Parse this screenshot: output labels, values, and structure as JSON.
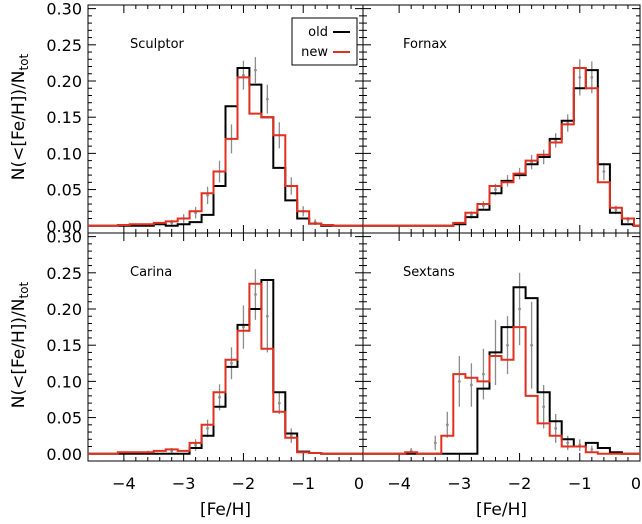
{
  "page": {
    "title": ""
  },
  "legend": {
    "placement": "top-right of first panel",
    "entries": [
      {
        "label": "old",
        "color": "#000000"
      },
      {
        "label": "new",
        "color": "#e03020"
      }
    ]
  },
  "axes": {
    "xlabel": "[Fe/H]",
    "ylabel_main": "N(<[Fe/H])/N",
    "ylabel_sub": "tot",
    "xlim": [
      -4.6,
      0.0
    ],
    "ylim": [
      -0.01,
      0.305
    ],
    "xticks": [
      -4,
      -3,
      -2,
      -1,
      0
    ],
    "xtick_labels": [
      "−4",
      "−3",
      "−2",
      "−1",
      "0"
    ],
    "yticks": [
      0.0,
      0.05,
      0.1,
      0.15,
      0.2,
      0.25,
      0.3
    ],
    "ytick_labels": [
      "0.00",
      "0.05",
      "0.10",
      "0.15",
      "0.20",
      "0.25",
      "0.30"
    ],
    "ytick_labels_lower": [
      "0.00",
      "0.05",
      "0.10",
      "0.15",
      "0.20",
      "0.25",
      "0.30"
    ],
    "ytick_labels_upper": [
      "0.00",
      "0.05",
      "0.10",
      "0.15",
      "0.20",
      "0.25",
      "0.30"
    ]
  },
  "chart_data": [
    {
      "type": "step",
      "title": "Sculptor",
      "bin_width": 0.2,
      "series": [
        {
          "name": "old",
          "color": "#000000",
          "x": [
            -4.0,
            -3.8,
            -3.6,
            -3.4,
            -3.2,
            -3.0,
            -2.8,
            -2.6,
            -2.4,
            -2.2,
            -2.0,
            -1.8,
            -1.6,
            -1.4,
            -1.2,
            -1.0,
            -0.8,
            -0.6
          ],
          "values": [
            0.0,
            0.0,
            0.0,
            0.002,
            0.0,
            0.002,
            0.005,
            0.015,
            0.055,
            0.165,
            0.218,
            0.195,
            0.15,
            0.08,
            0.035,
            0.01,
            0.003,
            0.0
          ]
        },
        {
          "name": "new",
          "color": "#e03020",
          "x": [
            -4.0,
            -3.8,
            -3.6,
            -3.4,
            -3.2,
            -3.0,
            -2.8,
            -2.6,
            -2.4,
            -2.2,
            -2.0,
            -1.8,
            -1.6,
            -1.4,
            -1.2,
            -1.0,
            -0.8,
            -0.6
          ],
          "values": [
            0.001,
            0.002,
            0.002,
            0.004,
            0.006,
            0.01,
            0.02,
            0.045,
            0.075,
            0.12,
            0.205,
            0.155,
            0.15,
            0.125,
            0.055,
            0.02,
            0.003,
            0.001
          ]
        }
      ],
      "errorbars": {
        "x": [
          -3.2,
          -3.0,
          -2.8,
          -2.6,
          -2.4,
          -2.2,
          -2.0,
          -1.8,
          -1.6,
          -1.4,
          -1.2,
          -1.0,
          -0.8
        ],
        "y": [
          0.004,
          0.01,
          0.018,
          0.042,
          0.075,
          0.12,
          0.208,
          0.215,
          0.175,
          0.125,
          0.055,
          0.02,
          0.005
        ],
        "err": [
          0.004,
          0.006,
          0.008,
          0.012,
          0.015,
          0.02,
          0.02,
          0.018,
          0.02,
          0.018,
          0.012,
          0.007,
          0.004
        ]
      }
    },
    {
      "type": "step",
      "title": "Fornax",
      "bin_width": 0.2,
      "series": [
        {
          "name": "old",
          "color": "#000000",
          "x": [
            -3.0,
            -2.8,
            -2.6,
            -2.4,
            -2.2,
            -2.0,
            -1.8,
            -1.6,
            -1.4,
            -1.2,
            -1.0,
            -0.8,
            -0.6,
            -0.4,
            -0.2
          ],
          "values": [
            0.002,
            0.012,
            0.022,
            0.045,
            0.062,
            0.07,
            0.085,
            0.095,
            0.12,
            0.145,
            0.19,
            0.215,
            0.085,
            0.018,
            0.002
          ]
        },
        {
          "name": "new",
          "color": "#e03020",
          "x": [
            -3.0,
            -2.8,
            -2.6,
            -2.4,
            -2.2,
            -2.0,
            -1.8,
            -1.6,
            -1.4,
            -1.2,
            -1.0,
            -0.8,
            -0.6,
            -0.4,
            -0.2
          ],
          "values": [
            0.004,
            0.018,
            0.03,
            0.055,
            0.06,
            0.072,
            0.09,
            0.098,
            0.115,
            0.14,
            0.218,
            0.19,
            0.06,
            0.025,
            0.01
          ]
        }
      ],
      "errorbars": {
        "x": [
          -2.8,
          -2.6,
          -2.4,
          -2.2,
          -2.0,
          -1.8,
          -1.6,
          -1.4,
          -1.2,
          -1.0,
          -0.8,
          -0.6,
          -0.4,
          -0.2
        ],
        "y": [
          0.015,
          0.028,
          0.05,
          0.062,
          0.072,
          0.088,
          0.095,
          0.118,
          0.142,
          0.205,
          0.205,
          0.075,
          0.022,
          0.008
        ],
        "err": [
          0.005,
          0.006,
          0.008,
          0.008,
          0.008,
          0.01,
          0.01,
          0.01,
          0.012,
          0.025,
          0.022,
          0.012,
          0.006,
          0.004
        ]
      }
    },
    {
      "type": "step",
      "title": "Carina",
      "bin_width": 0.2,
      "series": [
        {
          "name": "old",
          "color": "#000000",
          "x": [
            -4.0,
            -3.8,
            -3.6,
            -3.4,
            -3.2,
            -3.0,
            -2.8,
            -2.6,
            -2.4,
            -2.2,
            -2.0,
            -1.8,
            -1.6,
            -1.4,
            -1.2,
            -1.0,
            -0.8
          ],
          "values": [
            0.0,
            0.0,
            0.0,
            0.0,
            0.0,
            0.0,
            0.008,
            0.025,
            0.065,
            0.12,
            0.178,
            0.2,
            0.24,
            0.085,
            0.028,
            0.003,
            0.001
          ]
        },
        {
          "name": "new",
          "color": "#e03020",
          "x": [
            -4.0,
            -3.8,
            -3.6,
            -3.4,
            -3.2,
            -3.0,
            -2.8,
            -2.6,
            -2.4,
            -2.2,
            -2.0,
            -1.8,
            -1.6,
            -1.4,
            -1.2,
            -1.0,
            -0.8
          ],
          "values": [
            0.002,
            0.002,
            0.002,
            0.004,
            0.006,
            0.004,
            0.015,
            0.04,
            0.085,
            0.13,
            0.17,
            0.235,
            0.145,
            0.058,
            0.022,
            0.002,
            0.001
          ]
        }
      ],
      "errorbars": {
        "x": [
          -3.6,
          -3.2,
          -2.8,
          -2.6,
          -2.4,
          -2.2,
          -2.0,
          -1.8,
          -1.6,
          -1.4,
          -1.2
        ],
        "y": [
          0.002,
          0.004,
          0.012,
          0.035,
          0.078,
          0.125,
          0.175,
          0.22,
          0.19,
          0.07,
          0.025
        ],
        "err": [
          0.002,
          0.004,
          0.008,
          0.012,
          0.018,
          0.022,
          0.03,
          0.035,
          0.05,
          0.015,
          0.01
        ]
      }
    },
    {
      "type": "step",
      "title": "Sextans",
      "bin_width": 0.2,
      "series": [
        {
          "name": "old",
          "color": "#000000",
          "x": [
            -4.0,
            -3.8,
            -3.6,
            -3.4,
            -3.2,
            -3.0,
            -2.8,
            -2.6,
            -2.4,
            -2.2,
            -2.0,
            -1.8,
            -1.6,
            -1.4,
            -1.2,
            -1.0,
            -0.8,
            -0.6,
            -0.4,
            -0.2
          ],
          "values": [
            0.0,
            0.0,
            0.0,
            0.0,
            0.0,
            0.0,
            0.0,
            0.09,
            0.14,
            0.175,
            0.23,
            0.215,
            0.085,
            0.045,
            0.02,
            0.01,
            0.015,
            0.008,
            0.002,
            0.0
          ]
        },
        {
          "name": "new",
          "color": "#e03020",
          "x": [
            -4.0,
            -3.8,
            -3.6,
            -3.4,
            -3.2,
            -3.0,
            -2.8,
            -2.6,
            -2.4,
            -2.2,
            -2.0,
            -1.8,
            -1.6,
            -1.4,
            -1.2,
            -1.0,
            -0.8,
            -0.6,
            -0.4,
            -0.2
          ],
          "values": [
            0.0,
            0.002,
            0.0,
            0.0,
            0.025,
            0.11,
            0.105,
            0.1,
            0.135,
            0.13,
            0.175,
            0.08,
            0.042,
            0.025,
            0.01,
            0.01,
            0.002,
            0.0,
            0.0,
            0.0
          ]
        }
      ],
      "errorbars": {
        "x": [
          -3.8,
          -3.4,
          -3.2,
          -3.0,
          -2.8,
          -2.6,
          -2.4,
          -2.2,
          -2.0,
          -1.8,
          -1.6,
          -1.4,
          -1.2,
          -1.0,
          -0.8
        ],
        "y": [
          0.004,
          0.015,
          0.04,
          0.1,
          0.095,
          0.11,
          0.14,
          0.15,
          0.2,
          0.15,
          0.065,
          0.035,
          0.015,
          0.012,
          0.006
        ],
        "err": [
          0.004,
          0.01,
          0.018,
          0.035,
          0.03,
          0.035,
          0.045,
          0.04,
          0.05,
          0.06,
          0.03,
          0.02,
          0.01,
          0.008,
          0.005
        ]
      }
    }
  ]
}
